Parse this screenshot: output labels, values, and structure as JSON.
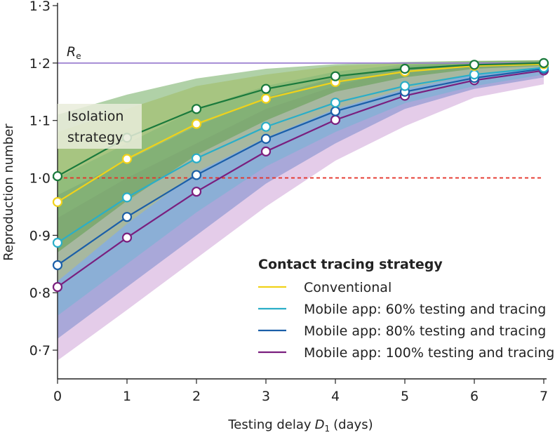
{
  "chart_data": {
    "type": "line",
    "title": "",
    "xlabel": "Testing delay",
    "xlabel_var": "D",
    "xlabel_sub": "1",
    "xlabel_unit": "(days)",
    "ylabel": "Reproduction number",
    "xlim": [
      0,
      7
    ],
    "ylim": [
      0.65,
      1.3
    ],
    "x_ticks": [
      0,
      1,
      2,
      3,
      4,
      5,
      6,
      7
    ],
    "x_tick_labels": [
      "0",
      "1",
      "2",
      "3",
      "4",
      "5",
      "6",
      "7"
    ],
    "y_ticks": [
      0.7,
      0.8,
      0.9,
      1.0,
      1.1,
      1.2,
      1.3
    ],
    "y_tick_labels": [
      "0·7",
      "0·8",
      "0·9",
      "1·0",
      "1·1",
      "1·2",
      "1·3"
    ],
    "reference_lines": [
      {
        "name": "Re",
        "label": "R",
        "label_sub": "e",
        "y": 1.2,
        "color": "#9b7fd0",
        "style": "solid"
      },
      {
        "name": "threshold",
        "y": 1.0,
        "color": "#e5342b",
        "style": "dashed"
      }
    ],
    "x": [
      0,
      1,
      2,
      3,
      4,
      5,
      6,
      7
    ],
    "series": [
      {
        "name": "Isolation strategy",
        "color": "#1a7a3c",
        "band_color": "#4f9a3c",
        "values": [
          1.003,
          1.07,
          1.12,
          1.155,
          1.177,
          1.19,
          1.197,
          1.2
        ],
        "lower": [
          0.87,
          0.96,
          1.04,
          1.1,
          1.15,
          1.175,
          1.19,
          1.195
        ],
        "upper": [
          1.11,
          1.145,
          1.173,
          1.19,
          1.198,
          1.202,
          1.204,
          1.205
        ]
      },
      {
        "name": "Conventional",
        "color": "#f0d21a",
        "band_color": "#d6c84a",
        "values": [
          0.958,
          1.033,
          1.094,
          1.138,
          1.167,
          1.185,
          1.195,
          1.198
        ],
        "lower": [
          0.82,
          0.92,
          1.01,
          1.07,
          1.12,
          1.155,
          1.18,
          1.19
        ],
        "upper": [
          1.08,
          1.12,
          1.16,
          1.18,
          1.195,
          1.2,
          1.203,
          1.205
        ]
      },
      {
        "name": "Mobile app: 60% testing and tracing",
        "color": "#2aaec8",
        "band_color": "#5bbad2",
        "values": [
          0.887,
          0.966,
          1.034,
          1.089,
          1.131,
          1.16,
          1.18,
          1.192
        ],
        "lower": [
          0.76,
          0.85,
          0.94,
          1.02,
          1.08,
          1.13,
          1.16,
          1.18
        ],
        "upper": [
          1.0,
          1.06,
          1.12,
          1.16,
          1.185,
          1.198,
          1.203,
          1.205
        ]
      },
      {
        "name": "Mobile app: 80% testing and tracing",
        "color": "#1b5fa8",
        "band_color": "#4a6fc0",
        "values": [
          0.848,
          0.932,
          1.005,
          1.068,
          1.116,
          1.15,
          1.174,
          1.19
        ],
        "lower": [
          0.72,
          0.81,
          0.9,
          0.99,
          1.06,
          1.12,
          1.155,
          1.175
        ],
        "upper": [
          0.97,
          1.03,
          1.09,
          1.14,
          1.175,
          1.195,
          1.202,
          1.204
        ]
      },
      {
        "name": "Mobile app: 100% testing and tracing",
        "color": "#7a1f7e",
        "band_color": "#b979c4",
        "values": [
          0.81,
          0.896,
          0.976,
          1.046,
          1.101,
          1.143,
          1.17,
          1.187
        ],
        "lower": [
          0.682,
          0.77,
          0.86,
          0.95,
          1.03,
          1.09,
          1.14,
          1.163
        ],
        "upper": [
          0.93,
          1.0,
          1.06,
          1.12,
          1.16,
          1.19,
          1.2,
          1.203
        ]
      }
    ],
    "annotation": {
      "line1": "Isolation",
      "line2": "strategy"
    },
    "legend": {
      "title": "Contact tracing strategy",
      "placement": "bottom-right",
      "entries": [
        "Conventional",
        "Mobile app: 60% testing and tracing",
        "Mobile app: 80% testing and tracing",
        "Mobile app: 100% testing and tracing"
      ]
    }
  }
}
